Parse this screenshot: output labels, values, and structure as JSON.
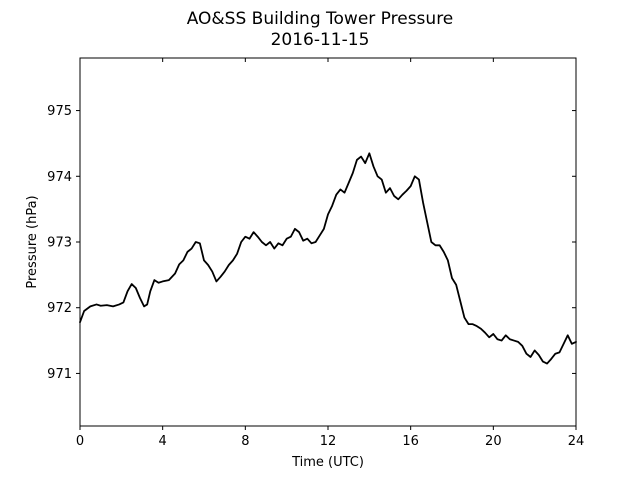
{
  "chart_data": {
    "type": "line",
    "title": "AO&SS Building Tower Pressure",
    "subtitle": "2016-11-15",
    "xlabel": "Time (UTC)",
    "ylabel": "Pressure (hPa)",
    "xlim": [
      0,
      24
    ],
    "ylim": [
      970.2,
      975.8
    ],
    "xticks": [
      0,
      4,
      8,
      12,
      16,
      20,
      24
    ],
    "yticks": [
      971,
      972,
      973,
      974,
      975
    ],
    "grid": false,
    "series": [
      {
        "color": "#000000",
        "x": [
          0,
          0.2,
          0.5,
          0.8,
          1.0,
          1.3,
          1.6,
          1.9,
          2.1,
          2.3,
          2.5,
          2.7,
          2.9,
          3.1,
          3.25,
          3.4,
          3.6,
          3.8,
          4.0,
          4.3,
          4.6,
          4.8,
          5.0,
          5.2,
          5.4,
          5.6,
          5.8,
          6.0,
          6.2,
          6.4,
          6.6,
          6.8,
          7.0,
          7.2,
          7.4,
          7.6,
          7.8,
          8.0,
          8.2,
          8.4,
          8.6,
          8.8,
          9.0,
          9.2,
          9.4,
          9.6,
          9.8,
          10.0,
          10.2,
          10.4,
          10.6,
          10.8,
          11.0,
          11.2,
          11.4,
          11.6,
          11.8,
          12.0,
          12.2,
          12.4,
          12.6,
          12.8,
          13.0,
          13.2,
          13.4,
          13.6,
          13.8,
          14.0,
          14.2,
          14.4,
          14.6,
          14.8,
          15.0,
          15.2,
          15.4,
          15.6,
          15.8,
          16.0,
          16.2,
          16.4,
          16.6,
          16.8,
          17.0,
          17.2,
          17.4,
          17.6,
          17.8,
          18.0,
          18.2,
          18.4,
          18.6,
          18.8,
          19.0,
          19.2,
          19.4,
          19.6,
          19.8,
          20.0,
          20.2,
          20.4,
          20.6,
          20.8,
          21.0,
          21.2,
          21.4,
          21.6,
          21.8,
          22.0,
          22.2,
          22.4,
          22.6,
          22.8,
          23.0,
          23.2,
          23.4,
          23.6,
          23.8,
          24.0
        ],
        "values": [
          971.78,
          971.95,
          972.02,
          972.05,
          972.03,
          972.04,
          972.02,
          972.05,
          972.08,
          972.25,
          972.36,
          972.3,
          972.15,
          972.02,
          972.05,
          972.25,
          972.42,
          972.38,
          972.4,
          972.42,
          972.52,
          972.66,
          972.72,
          972.85,
          972.9,
          973.0,
          972.98,
          972.72,
          972.65,
          972.55,
          972.4,
          972.47,
          972.55,
          972.65,
          972.72,
          972.82,
          973.0,
          973.08,
          973.05,
          973.15,
          973.08,
          973.0,
          972.95,
          973.0,
          972.9,
          972.98,
          972.95,
          973.05,
          973.08,
          973.2,
          973.15,
          973.02,
          973.05,
          972.98,
          973.0,
          973.1,
          973.2,
          973.42,
          973.55,
          973.72,
          973.8,
          973.75,
          973.9,
          974.05,
          974.25,
          974.3,
          974.2,
          974.35,
          974.15,
          974.0,
          973.95,
          973.75,
          973.82,
          973.7,
          973.65,
          973.72,
          973.78,
          973.85,
          974.0,
          973.95,
          973.6,
          973.3,
          973.0,
          972.95,
          972.95,
          972.85,
          972.72,
          972.45,
          972.35,
          972.1,
          971.85,
          971.75,
          971.75,
          971.72,
          971.68,
          971.62,
          971.55,
          971.6,
          971.52,
          971.5,
          971.58,
          971.52,
          971.5,
          971.48,
          971.42,
          971.3,
          971.25,
          971.35,
          971.28,
          971.18,
          971.15,
          971.22,
          971.3,
          971.32,
          971.45,
          971.58,
          971.45,
          971.48
        ]
      }
    ]
  }
}
